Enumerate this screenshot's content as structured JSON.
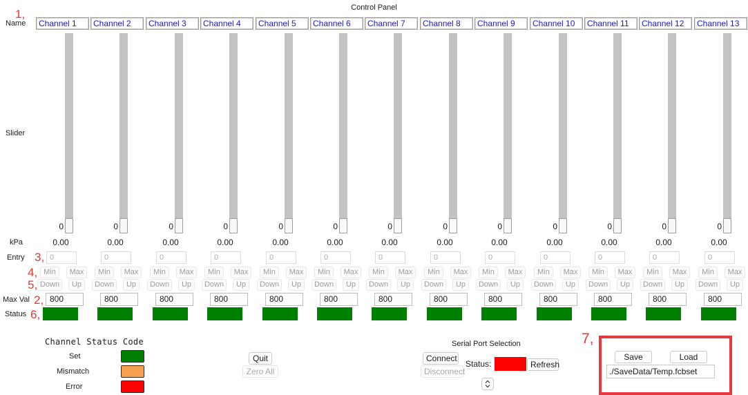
{
  "window": {
    "title": "Control Panel"
  },
  "row_labels": {
    "name": "Name",
    "slider": "Slider",
    "kpa": "kPa",
    "entry": "Entry",
    "max_val": "Max Val",
    "status": "Status"
  },
  "annotations": [
    "1,",
    "2,",
    "3,",
    "4,",
    "5,",
    "6,",
    "7,"
  ],
  "channels": [
    {
      "name": "Channel 1",
      "slider_value": "0",
      "kpa": "0.00",
      "entry_placeholder": "0",
      "min_label": "Min",
      "max_label": "Max",
      "down_label": "Down",
      "up_label": "Up",
      "max_val": "800"
    },
    {
      "name": "Channel 2",
      "slider_value": "0",
      "kpa": "0.00",
      "entry_placeholder": "0",
      "min_label": "Min",
      "max_label": "Max",
      "down_label": "Down",
      "up_label": "Up",
      "max_val": "800"
    },
    {
      "name": "Channel 3",
      "slider_value": "0",
      "kpa": "0.00",
      "entry_placeholder": "0",
      "min_label": "Min",
      "max_label": "Max",
      "down_label": "Down",
      "up_label": "Up",
      "max_val": "800"
    },
    {
      "name": "Channel 4",
      "slider_value": "0",
      "kpa": "0.00",
      "entry_placeholder": "0",
      "min_label": "Min",
      "max_label": "Max",
      "down_label": "Down",
      "up_label": "Up",
      "max_val": "800"
    },
    {
      "name": "Channel 5",
      "slider_value": "0",
      "kpa": "0.00",
      "entry_placeholder": "0",
      "min_label": "Min",
      "max_label": "Max",
      "down_label": "Down",
      "up_label": "Up",
      "max_val": "800"
    },
    {
      "name": "Channel 6",
      "slider_value": "0",
      "kpa": "0.00",
      "entry_placeholder": "0",
      "min_label": "Min",
      "max_label": "Max",
      "down_label": "Down",
      "up_label": "Up",
      "max_val": "800"
    },
    {
      "name": "Channel 7",
      "slider_value": "0",
      "kpa": "0.00",
      "entry_placeholder": "0",
      "min_label": "Min",
      "max_label": "Max",
      "down_label": "Down",
      "up_label": "Up",
      "max_val": "800"
    },
    {
      "name": "Channel 8",
      "slider_value": "0",
      "kpa": "0.00",
      "entry_placeholder": "0",
      "min_label": "Min",
      "max_label": "Max",
      "down_label": "Down",
      "up_label": "Up",
      "max_val": "800"
    },
    {
      "name": "Channel 9",
      "slider_value": "0",
      "kpa": "0.00",
      "entry_placeholder": "0",
      "min_label": "Min",
      "max_label": "Max",
      "down_label": "Down",
      "up_label": "Up",
      "max_val": "800"
    },
    {
      "name": "Channel 10",
      "slider_value": "0",
      "kpa": "0.00",
      "entry_placeholder": "0",
      "min_label": "Min",
      "max_label": "Max",
      "down_label": "Down",
      "up_label": "Up",
      "max_val": "800"
    },
    {
      "name": "Channel 11",
      "slider_value": "0",
      "kpa": "0.00",
      "entry_placeholder": "0",
      "min_label": "Min",
      "max_label": "Max",
      "down_label": "Down",
      "up_label": "Up",
      "max_val": "800"
    },
    {
      "name": "Channel 12",
      "slider_value": "0",
      "kpa": "0.00",
      "entry_placeholder": "0",
      "min_label": "Min",
      "max_label": "Max",
      "down_label": "Down",
      "up_label": "Up",
      "max_val": "800"
    },
    {
      "name": "Channel 13",
      "slider_value": "0",
      "kpa": "0.00",
      "entry_placeholder": "0",
      "min_label": "Min",
      "max_label": "Max",
      "down_label": "Down",
      "up_label": "Up",
      "max_val": "800"
    }
  ],
  "status_colors": {
    "set": "#008000",
    "mismatch": "#f5a04e",
    "error": "#ff0000"
  },
  "legend": {
    "title": "Channel Status Code",
    "items": [
      {
        "label": "Set",
        "color": "#008000"
      },
      {
        "label": "Mismatch",
        "color": "#f5a04e"
      },
      {
        "label": "Error",
        "color": "#ff0000"
      }
    ]
  },
  "controls": {
    "quit_label": "Quit",
    "zero_all_label": "Zero All"
  },
  "serial": {
    "title": "Serial Port Selection",
    "connect_label": "Connect",
    "disconnect_label": "Disconnect",
    "status_label": "Status:",
    "status_color": "#ff0000",
    "refresh_label": "Refresh",
    "port_selector_icon": "up-down-chevron-icon"
  },
  "file_panel": {
    "save_label": "Save",
    "load_label": "Load",
    "path_value": "./SaveData/Temp.fcbset",
    "highlight_color": "#e5393d"
  }
}
